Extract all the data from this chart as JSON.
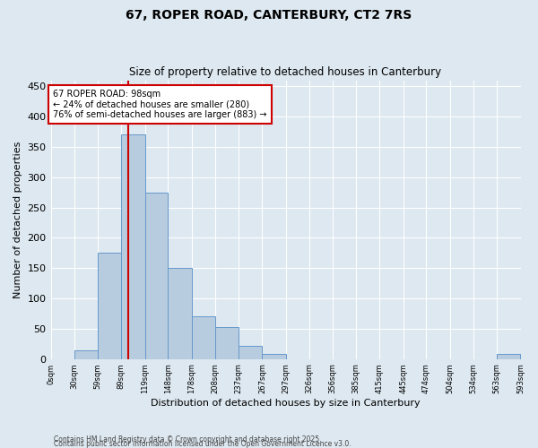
{
  "title1": "67, ROPER ROAD, CANTERBURY, CT2 7RS",
  "title2": "Size of property relative to detached houses in Canterbury",
  "xlabel": "Distribution of detached houses by size in Canterbury",
  "ylabel": "Number of detached properties",
  "bin_edges": [
    0,
    30,
    59,
    89,
    119,
    148,
    178,
    208,
    237,
    267,
    297,
    326,
    356,
    385,
    415,
    445,
    474,
    504,
    534,
    563,
    593
  ],
  "bar_heights": [
    0,
    15,
    175,
    370,
    275,
    150,
    70,
    53,
    22,
    8,
    0,
    0,
    0,
    0,
    0,
    0,
    0,
    0,
    0,
    8
  ],
  "bar_color": "#b8ccdf",
  "bar_edgecolor": "#6699cc",
  "property_value": 98,
  "red_line_color": "#cc0000",
  "annotation_text": "67 ROPER ROAD: 98sqm\n← 24% of detached houses are smaller (280)\n76% of semi-detached houses are larger (883) →",
  "annotation_box_color": "#ffffff",
  "annotation_box_edgecolor": "#cc0000",
  "ylim": [
    0,
    460
  ],
  "yticks": [
    0,
    50,
    100,
    150,
    200,
    250,
    300,
    350,
    400,
    450
  ],
  "footer1": "Contains HM Land Registry data © Crown copyright and database right 2025.",
  "footer2": "Contains public sector information licensed under the Open Government Licence v3.0.",
  "bg_color": "#dde8f0",
  "plot_bg_color": "#dde8f0"
}
